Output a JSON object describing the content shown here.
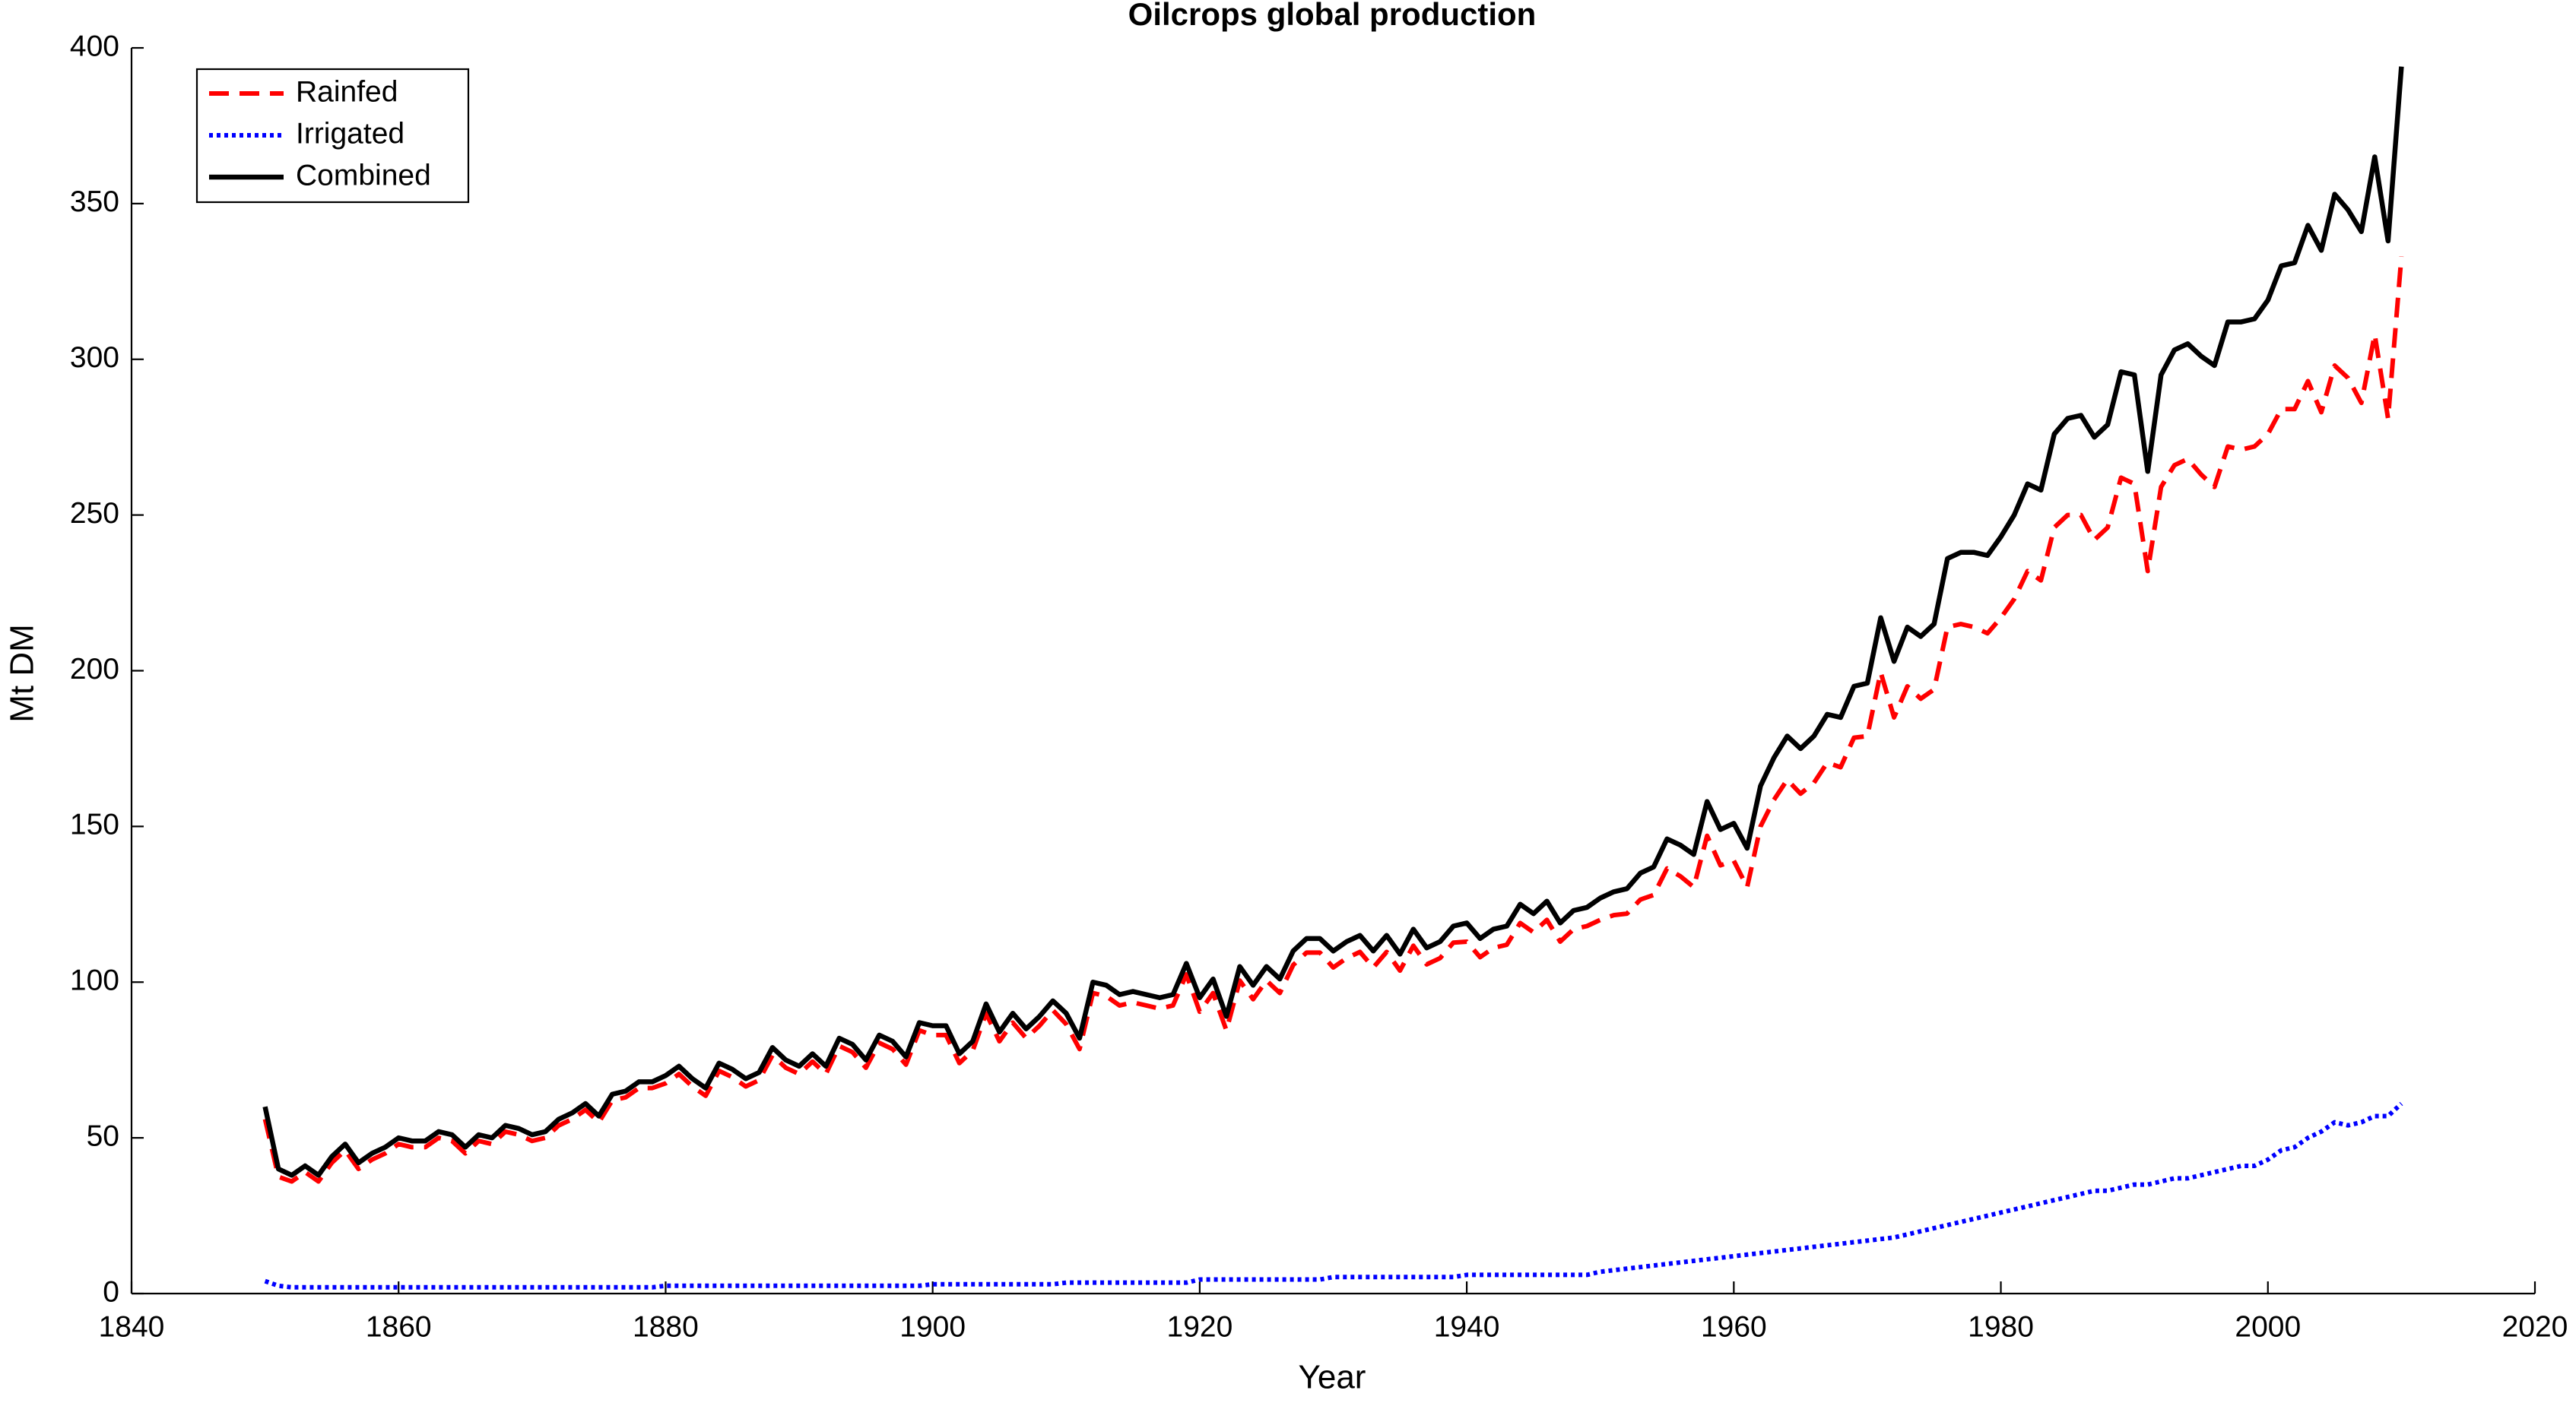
{
  "chart_data": {
    "type": "line",
    "title": "Oilcrops global production",
    "xlabel": "Year",
    "ylabel": "Mt DM",
    "x": [
      1850,
      1851,
      1852,
      1853,
      1854,
      1855,
      1856,
      1857,
      1858,
      1859,
      1860,
      1861,
      1862,
      1863,
      1864,
      1865,
      1866,
      1867,
      1868,
      1869,
      1870,
      1871,
      1872,
      1873,
      1874,
      1875,
      1876,
      1877,
      1878,
      1879,
      1880,
      1881,
      1882,
      1883,
      1884,
      1885,
      1886,
      1887,
      1888,
      1889,
      1890,
      1891,
      1892,
      1893,
      1894,
      1895,
      1896,
      1897,
      1898,
      1899,
      1900,
      1901,
      1902,
      1903,
      1904,
      1905,
      1906,
      1907,
      1908,
      1909,
      1910,
      1911,
      1912,
      1913,
      1914,
      1915,
      1916,
      1917,
      1918,
      1919,
      1920,
      1921,
      1922,
      1923,
      1924,
      1925,
      1926,
      1927,
      1928,
      1929,
      1930,
      1931,
      1932,
      1933,
      1934,
      1935,
      1936,
      1937,
      1938,
      1939,
      1940,
      1941,
      1942,
      1943,
      1944,
      1945,
      1946,
      1947,
      1948,
      1949,
      1950,
      1951,
      1952,
      1953,
      1954,
      1955,
      1956,
      1957,
      1958,
      1959,
      1960,
      1961,
      1962,
      1963,
      1964,
      1965,
      1966,
      1967,
      1968,
      1969,
      1970,
      1971,
      1972,
      1973,
      1974,
      1975,
      1976,
      1977,
      1978,
      1979,
      1980,
      1981,
      1982,
      1983,
      1984,
      1985,
      1986,
      1987,
      1988,
      1989,
      1990,
      1991,
      1992,
      1993,
      1994,
      1995,
      1996,
      1997,
      1998,
      1999,
      2000,
      2001,
      2002,
      2003,
      2004,
      2005,
      2006,
      2007,
      2008,
      2009,
      2010
    ],
    "series": [
      {
        "name": "Rainfed",
        "color": "#ff0000",
        "line_style": "dashed",
        "values": [
          56,
          37.5,
          36,
          39,
          36,
          42,
          46,
          40,
          43,
          45,
          48,
          47,
          47,
          50,
          49,
          45,
          49,
          48,
          52,
          51,
          49,
          50,
          54,
          56,
          59,
          55,
          62,
          63,
          66,
          66,
          67.5,
          70.5,
          66.5,
          63.5,
          71.5,
          69.5,
          66.5,
          68.5,
          76.5,
          72.5,
          70.5,
          74.5,
          70.5,
          79.5,
          77.5,
          72.5,
          80.5,
          78.5,
          73.5,
          84.5,
          83,
          83,
          74,
          78,
          90,
          81,
          87,
          82,
          86,
          91,
          86.5,
          78.5,
          96.5,
          95.5,
          92.5,
          93.5,
          92.5,
          91.5,
          92.5,
          102.5,
          90.5,
          96.5,
          84.5,
          100.5,
          94.5,
          100.5,
          96.5,
          105.5,
          109.5,
          109.5,
          104.7,
          107.7,
          109.7,
          104.7,
          109.7,
          103.7,
          111.7,
          105.7,
          107.7,
          112.7,
          113,
          108,
          111,
          112,
          119,
          116,
          120,
          113,
          117,
          118,
          120,
          121.5,
          122,
          126.5,
          128,
          136.5,
          134,
          130.5,
          147,
          137.5,
          139,
          130.5,
          150,
          158.5,
          165,
          160.5,
          164,
          170.5,
          169,
          178.5,
          179,
          199.5,
          185,
          195,
          191,
          194,
          214,
          215,
          214,
          212,
          217,
          223,
          232,
          229,
          246,
          250,
          250,
          242,
          246,
          262,
          260,
          232,
          259,
          266,
          268,
          263,
          259,
          272,
          271,
          272,
          276,
          284,
          284,
          293,
          283,
          298,
          294,
          286,
          308,
          281,
          333
        ]
      },
      {
        "name": "Irrigated",
        "color": "#0000ff",
        "line_style": "dotted",
        "values": [
          4,
          2.5,
          2,
          2,
          2,
          2,
          2,
          2,
          2,
          2,
          2,
          2,
          2,
          2,
          2,
          2,
          2,
          2,
          2,
          2,
          2,
          2,
          2,
          2,
          2,
          2,
          2,
          2,
          2,
          2,
          2.5,
          2.5,
          2.5,
          2.5,
          2.5,
          2.5,
          2.5,
          2.5,
          2.5,
          2.5,
          2.5,
          2.5,
          2.5,
          2.5,
          2.5,
          2.5,
          2.5,
          2.5,
          2.5,
          2.5,
          3,
          3,
          3,
          3,
          3,
          3,
          3,
          3,
          3,
          3,
          3.5,
          3.5,
          3.5,
          3.5,
          3.5,
          3.5,
          3.5,
          3.5,
          3.5,
          3.5,
          4.5,
          4.5,
          4.5,
          4.5,
          4.5,
          4.5,
          4.5,
          4.5,
          4.5,
          4.5,
          5.3,
          5.3,
          5.3,
          5.3,
          5.3,
          5.3,
          5.3,
          5.3,
          5.3,
          5.3,
          6,
          6,
          6,
          6,
          6,
          6,
          6,
          6,
          6,
          6,
          7,
          7.5,
          8,
          8.5,
          9,
          9.5,
          10,
          10.5,
          11,
          11.5,
          12,
          12.5,
          13,
          13.5,
          14,
          14.5,
          15,
          15.5,
          16,
          16.5,
          17,
          17.5,
          18,
          19,
          20,
          21,
          22,
          23,
          24,
          25,
          26,
          27,
          28,
          29,
          30,
          31,
          32,
          33,
          33,
          34,
          35,
          35,
          36,
          37,
          37,
          38,
          39,
          40,
          41,
          41,
          43,
          46,
          47,
          50,
          52,
          55,
          54,
          55,
          57,
          57,
          61
        ]
      },
      {
        "name": "Combined",
        "color": "#000000",
        "line_style": "solid",
        "values": [
          60,
          40,
          38,
          41,
          38,
          44,
          48,
          42,
          45,
          47,
          50,
          49,
          49,
          52,
          51,
          47,
          51,
          50,
          54,
          53,
          51,
          52,
          56,
          58,
          61,
          57,
          64,
          65,
          68,
          68,
          70,
          73,
          69,
          66,
          74,
          72,
          69,
          71,
          79,
          75,
          73,
          77,
          73,
          82,
          80,
          75,
          83,
          81,
          76,
          87,
          86,
          86,
          77,
          81,
          93,
          84,
          90,
          85,
          89,
          94,
          90,
          82,
          100,
          99,
          96,
          97,
          96,
          95,
          96,
          106,
          95,
          101,
          89,
          105,
          99,
          105,
          101,
          110,
          114,
          114,
          110,
          113,
          115,
          110,
          115,
          109,
          117,
          111,
          113,
          118,
          119,
          114,
          117,
          118,
          125,
          122,
          126,
          119,
          123,
          124,
          127,
          129,
          130,
          135,
          137,
          146,
          144,
          141,
          158,
          149,
          151,
          143,
          163,
          172,
          179,
          175,
          179,
          186,
          185,
          195,
          196,
          217,
          203,
          214,
          211,
          215,
          236,
          238,
          238,
          237,
          243,
          250,
          260,
          258,
          276,
          281,
          282,
          275,
          279,
          296,
          295,
          264,
          295,
          303,
          305,
          301,
          298,
          312,
          312,
          313,
          319,
          330,
          331,
          343,
          335,
          353,
          348,
          341,
          365,
          338,
          394
        ]
      }
    ],
    "xlim": [
      1840,
      2020
    ],
    "xticks": [
      1840,
      1860,
      1880,
      1900,
      1920,
      1940,
      1960,
      1980,
      2000,
      2020
    ],
    "ylim": [
      0,
      400
    ],
    "yticks": [
      0,
      50,
      100,
      150,
      200,
      250,
      300,
      350,
      400
    ],
    "grid": false,
    "legend": "upper left"
  }
}
